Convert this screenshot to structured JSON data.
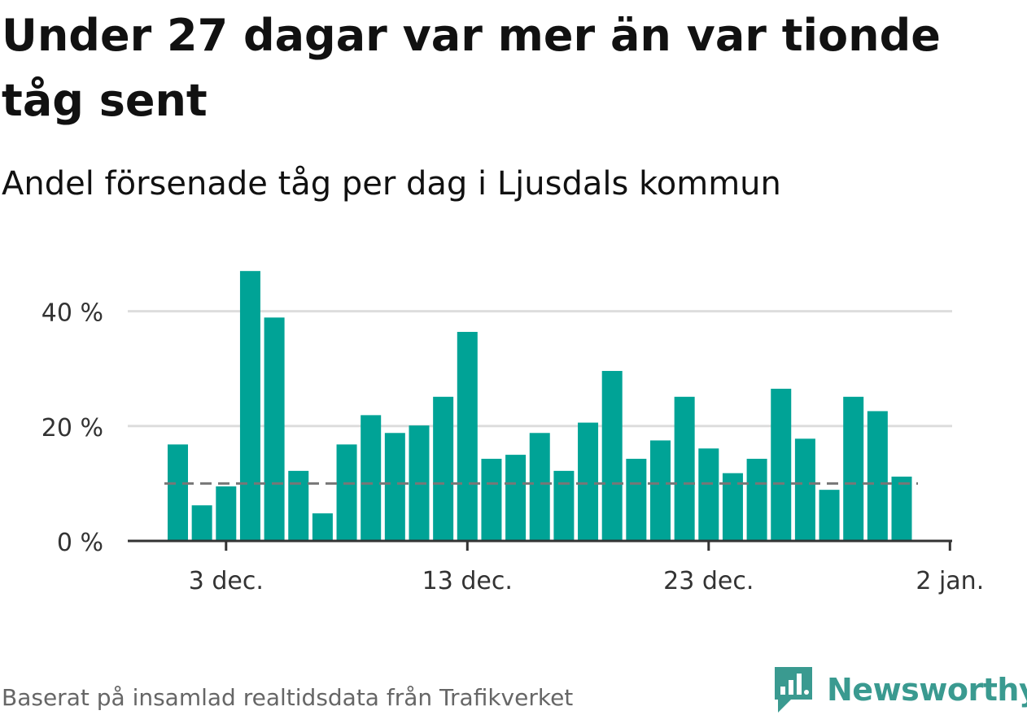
{
  "header": {
    "title": "Under 27 dagar var mer än var tionde tåg sent",
    "subtitle": "Andel försenade tåg per dag i Ljusdals kommun"
  },
  "footer": {
    "source": "Baserat på insamlad realtidsdata från Trafikverket",
    "brand": "Newsworthy"
  },
  "colors": {
    "bar": "#00a396",
    "reference_line": "#777777",
    "grid": "#dddddd",
    "axis": "#333333",
    "brand": "#3a9a90"
  },
  "icons": {
    "logo": "bar-chart-speech-bubble-icon"
  },
  "chart_data": {
    "type": "bar",
    "categories": [
      "1 dec.",
      "2 dec.",
      "3 dec.",
      "4 dec.",
      "5 dec.",
      "6 dec.",
      "7 dec.",
      "8 dec.",
      "9 dec.",
      "10 dec.",
      "11 dec.",
      "12 dec.",
      "13 dec.",
      "14 dec.",
      "15 dec.",
      "16 dec.",
      "17 dec.",
      "18 dec.",
      "19 dec.",
      "20 dec.",
      "21 dec.",
      "22 dec.",
      "23 dec.",
      "24 dec.",
      "25 dec.",
      "26 dec.",
      "27 dec.",
      "28 dec.",
      "29 dec.",
      "30 dec.",
      "31 dec."
    ],
    "values": [
      16.8,
      6.2,
      9.5,
      47,
      38.9,
      12.2,
      4.8,
      16.8,
      21.9,
      18.8,
      20.1,
      25.1,
      36.4,
      14.3,
      15,
      18.8,
      12.2,
      20.6,
      29.6,
      14.3,
      17.5,
      25.1,
      16.1,
      11.8,
      14.3,
      26.5,
      17.8,
      8.9,
      25.1,
      22.6,
      11.2
    ],
    "reference_line": {
      "value": 10
    },
    "ylim": [
      0,
      50
    ],
    "yticks": [
      {
        "value": 0,
        "label": "0 %"
      },
      {
        "value": 20,
        "label": "20 %"
      },
      {
        "value": 40,
        "label": "40 %"
      }
    ],
    "xticks": [
      {
        "index": 2,
        "label": "3 dec."
      },
      {
        "index": 12,
        "label": "13 dec."
      },
      {
        "index": 22,
        "label": "23 dec."
      },
      {
        "index": 32,
        "label": "2 jan."
      }
    ],
    "xlabel": "",
    "ylabel": "",
    "grid": true
  }
}
